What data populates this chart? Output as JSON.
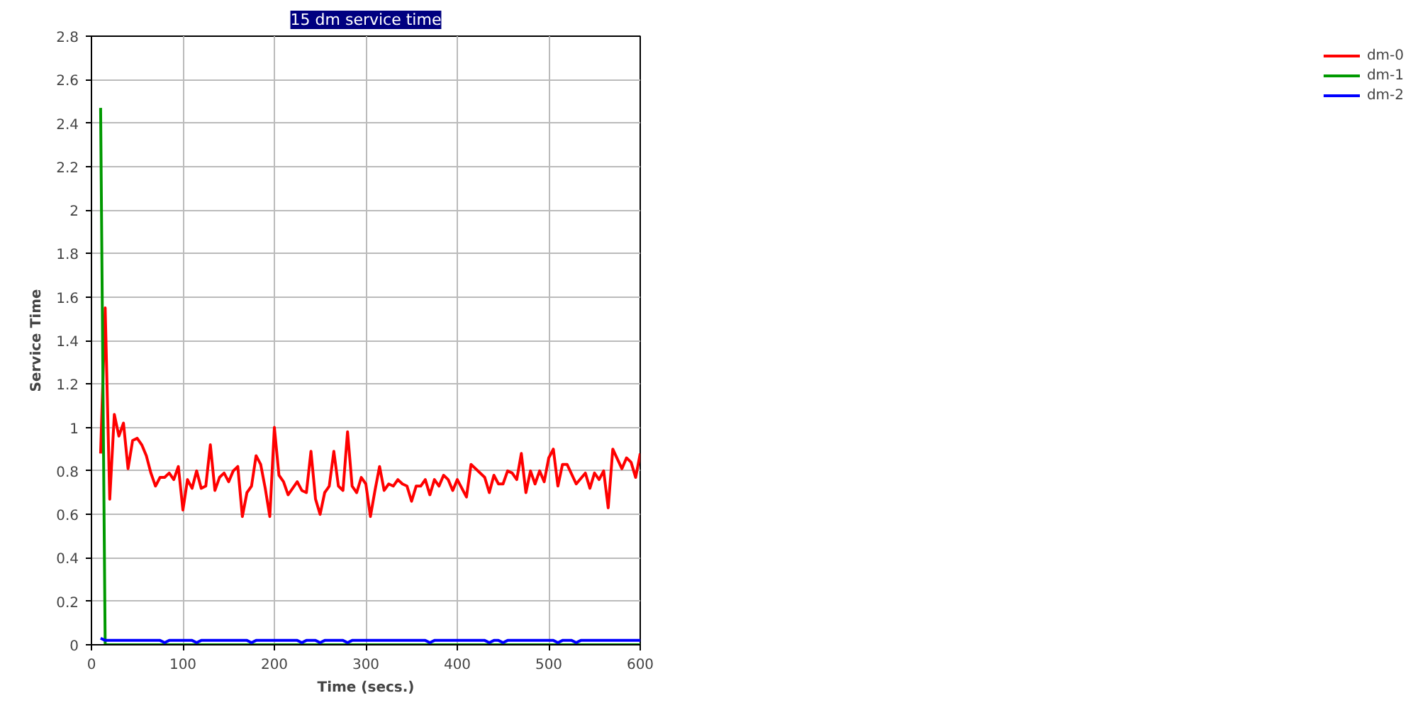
{
  "chart_data": {
    "type": "line",
    "title": "15 dm service time",
    "xlabel": "Time (secs.)",
    "ylabel": "Service Time",
    "xlim": [
      0,
      600
    ],
    "xticks": [
      0,
      100,
      200,
      300,
      400,
      500,
      600
    ],
    "ylim": [
      0,
      2.8
    ],
    "yticks": [
      0,
      0.2,
      0.4,
      0.6,
      0.8,
      1,
      1.2,
      1.4,
      1.6,
      1.8,
      2,
      2.2,
      2.4,
      2.6,
      2.8
    ],
    "grid": true,
    "legend": "top right",
    "marker": "none",
    "line_style": "solid",
    "series": [
      {
        "name": "dm-0",
        "color": "#ff0000",
        "x": [
          10,
          15,
          20,
          25,
          30,
          35,
          40,
          45,
          50,
          55,
          60,
          65,
          70,
          75,
          80,
          85,
          90,
          95,
          100,
          105,
          110,
          115,
          120,
          125,
          130,
          135,
          140,
          145,
          150,
          155,
          160,
          165,
          170,
          175,
          180,
          185,
          190,
          195,
          200,
          205,
          210,
          215,
          220,
          225,
          230,
          235,
          240,
          245,
          250,
          255,
          260,
          265,
          270,
          275,
          280,
          285,
          290,
          295,
          300,
          305,
          310,
          315,
          320,
          325,
          330,
          335,
          340,
          345,
          350,
          355,
          360,
          365,
          370,
          375,
          380,
          385,
          390,
          395,
          400,
          410,
          415,
          430,
          435,
          440,
          445,
          450,
          455,
          460,
          465,
          470,
          475,
          480,
          485,
          490,
          495,
          500,
          505,
          510,
          515,
          520,
          530,
          540,
          545,
          550,
          555,
          560,
          565,
          570,
          580,
          585,
          590,
          595,
          600
        ],
        "values": [
          0.88,
          1.55,
          0.67,
          1.06,
          0.96,
          1.02,
          0.81,
          0.94,
          0.95,
          0.92,
          0.87,
          0.79,
          0.73,
          0.77,
          0.77,
          0.79,
          0.76,
          0.82,
          0.62,
          0.76,
          0.72,
          0.8,
          0.72,
          0.73,
          0.92,
          0.71,
          0.77,
          0.79,
          0.75,
          0.8,
          0.82,
          0.59,
          0.7,
          0.73,
          0.87,
          0.83,
          0.72,
          0.59,
          1.0,
          0.78,
          0.75,
          0.69,
          0.72,
          0.75,
          0.71,
          0.7,
          0.89,
          0.67,
          0.6,
          0.7,
          0.73,
          0.89,
          0.73,
          0.71,
          0.98,
          0.73,
          0.7,
          0.77,
          0.74,
          0.59,
          0.71,
          0.82,
          0.71,
          0.74,
          0.73,
          0.76,
          0.74,
          0.73,
          0.66,
          0.73,
          0.73,
          0.76,
          0.69,
          0.76,
          0.73,
          0.78,
          0.76,
          0.71,
          0.76,
          0.68,
          0.83,
          0.77,
          0.7,
          0.78,
          0.74,
          0.74,
          0.8,
          0.79,
          0.76,
          0.88,
          0.7,
          0.8,
          0.74,
          0.8,
          0.75,
          0.86,
          0.9,
          0.73,
          0.83,
          0.83,
          0.74,
          0.79,
          0.72,
          0.79,
          0.76,
          0.8,
          0.63,
          0.9,
          0.81,
          0.86,
          0.84,
          0.77,
          0.88
        ]
      },
      {
        "name": "dm-1",
        "color": "#009900",
        "x": [
          10,
          15,
          600
        ],
        "values": [
          2.47,
          0,
          0
        ]
      },
      {
        "name": "dm-2",
        "color": "#0000ff",
        "x": [
          10,
          15,
          75,
          80,
          85,
          110,
          115,
          120,
          170,
          175,
          180,
          225,
          230,
          235,
          245,
          250,
          255,
          275,
          280,
          285,
          365,
          370,
          375,
          430,
          435,
          440,
          445,
          450,
          455,
          505,
          510,
          515,
          525,
          530,
          535,
          600
        ],
        "values": [
          0.03,
          0.02,
          0.02,
          0.01,
          0.02,
          0.02,
          0.01,
          0.02,
          0.02,
          0.01,
          0.02,
          0.02,
          0.01,
          0.02,
          0.02,
          0.01,
          0.02,
          0.02,
          0.01,
          0.02,
          0.02,
          0.01,
          0.02,
          0.02,
          0.01,
          0.02,
          0.02,
          0.01,
          0.02,
          0.02,
          0.01,
          0.02,
          0.02,
          0.01,
          0.02,
          0.02
        ]
      }
    ]
  }
}
